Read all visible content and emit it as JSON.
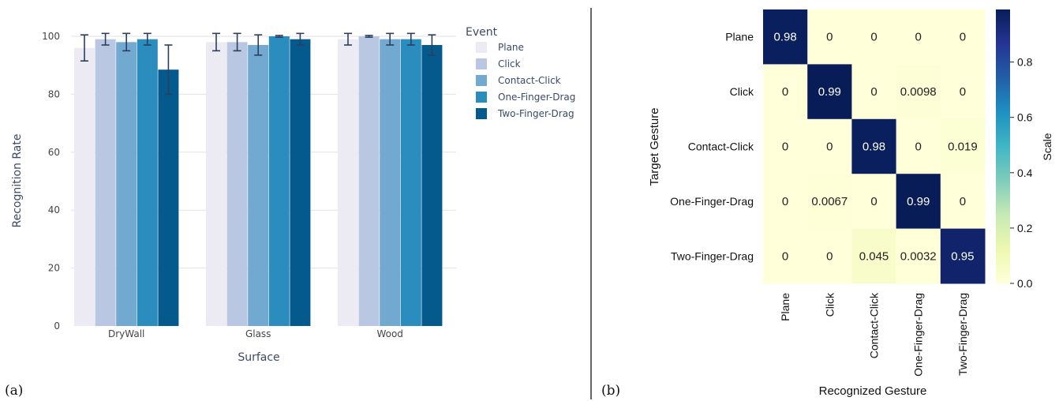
{
  "panel_labels": {
    "a": "(a)",
    "b": "(b)"
  },
  "colors": {
    "series": [
      "#ecebf4",
      "#b9c7e2",
      "#72a9d0",
      "#2b8cbe",
      "#045a8d"
    ],
    "errorbar": "#2a3f5f",
    "grid": "#e2e2e2",
    "divider": "#333333"
  },
  "chart_data": [
    {
      "type": "bar",
      "xlabel": "Surface",
      "ylabel": "Recognition Rate",
      "legend_title": "Event",
      "legend_position": "right",
      "ylim": [
        0,
        100
      ],
      "yticks": [
        0,
        20,
        40,
        60,
        80,
        100
      ],
      "grid": true,
      "categories": [
        "DryWall",
        "Glass",
        "Wood"
      ],
      "series": [
        {
          "name": "Plane",
          "values": [
            96,
            98,
            99
          ],
          "error": [
            4.5,
            3,
            2
          ]
        },
        {
          "name": "Click",
          "values": [
            99,
            98,
            100
          ],
          "error": [
            2,
            3,
            0.3
          ]
        },
        {
          "name": "Contact-Click",
          "values": [
            98,
            97,
            99
          ],
          "error": [
            3,
            3.5,
            2
          ]
        },
        {
          "name": "One-Finger-Drag",
          "values": [
            99,
            100,
            99
          ],
          "error": [
            2,
            0.3,
            2
          ]
        },
        {
          "name": "Two-Finger-Drag",
          "values": [
            88.5,
            99,
            97
          ],
          "error": [
            8.5,
            2,
            3.5
          ]
        }
      ]
    },
    {
      "type": "heatmap",
      "xlabel": "Recognized Gesture",
      "ylabel": "Target Gesture",
      "colorbar_label": "Scale",
      "colorbar_ticks": [
        0.0,
        0.2,
        0.4,
        0.6,
        0.8
      ],
      "colorbar_tick_labels": [
        "0.0",
        "0.2",
        "0.4",
        "0.6",
        "0.8"
      ],
      "colormap": "YlGnBu",
      "vmin": 0,
      "vmax": 0.99,
      "rows": [
        "Plane",
        "Click",
        "Contact-Click",
        "One-Finger-Drag",
        "Two-Finger-Drag"
      ],
      "cols": [
        "Plane",
        "Click",
        "Contact-Click",
        "One-Finger-Drag",
        "Two-Finger-Drag"
      ],
      "values": [
        [
          0.98,
          0,
          0,
          0,
          0
        ],
        [
          0,
          0.99,
          0,
          0.0098,
          0
        ],
        [
          0,
          0,
          0.98,
          0,
          0.019
        ],
        [
          0,
          0.0067,
          0,
          0.99,
          0
        ],
        [
          0,
          0,
          0.045,
          0.0032,
          0.95
        ]
      ],
      "labels": [
        [
          "0.98",
          "0",
          "0",
          "0",
          "0"
        ],
        [
          "0",
          "0.99",
          "0",
          "0.0098",
          "0"
        ],
        [
          "0",
          "0",
          "0.98",
          "0",
          "0.019"
        ],
        [
          "0",
          "0.0067",
          "0",
          "0.99",
          "0"
        ],
        [
          "0",
          "0",
          "0.045",
          "0.0032",
          "0.95"
        ]
      ]
    }
  ]
}
